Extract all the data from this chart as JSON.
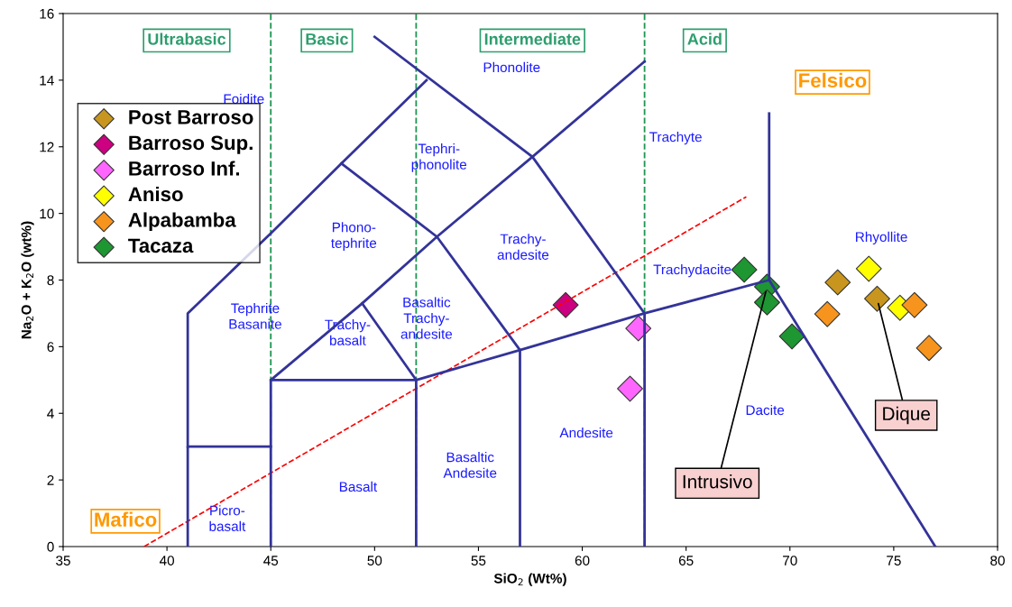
{
  "chart_data": {
    "type": "scatter",
    "xlabel": "SiO$_{2}$ (Wt%)",
    "ylabel": "Na$_{2}$O + K$_{2}$O (wt%)",
    "xlim": [
      35,
      80
    ],
    "ylim": [
      0,
      16
    ],
    "xticks": [
      35,
      40,
      45,
      50,
      55,
      60,
      65,
      70,
      75,
      80
    ],
    "yticks": [
      0,
      2,
      4,
      6,
      8,
      10,
      12,
      14,
      16
    ],
    "grid": false,
    "legend": "top left",
    "marker": "diamond",
    "series": [
      {
        "name": "Post Barroso",
        "color": "#c8961e",
        "x": [
          72.3,
          74.2
        ],
        "values": [
          7.93,
          7.44
        ]
      },
      {
        "name": "Barroso Sup.",
        "color": "#cc0080",
        "x": [
          59.2
        ],
        "values": [
          7.25
        ]
      },
      {
        "name": "Barroso Inf.",
        "color": "#ff66ff",
        "x": [
          62.7,
          62.3
        ],
        "values": [
          6.55,
          4.74
        ]
      },
      {
        "name": "Aniso",
        "color": "#ffff00",
        "x": [
          73.8,
          75.3
        ],
        "values": [
          8.34,
          7.17
        ]
      },
      {
        "name": "Alpabamba",
        "color": "#f7941d",
        "x": [
          71.8,
          76.0,
          76.7
        ],
        "values": [
          6.98,
          7.25,
          5.96
        ]
      },
      {
        "name": "Tacaza",
        "color": "#1e9632",
        "x": [
          67.8,
          68.9,
          68.9,
          70.1
        ],
        "values": [
          8.31,
          7.8,
          7.33,
          6.31
        ]
      },
      {
        "type": "line",
        "marker": "none",
        "line_style": "dashed",
        "color": "#ff0000",
        "x": [
          38.9,
          67.9
        ],
        "values": [
          0,
          10.5
        ]
      },
      {
        "type": "line",
        "marker": "none",
        "color": "#333399",
        "x": [
          41,
          41,
          45
        ],
        "values": [
          0,
          3,
          3
        ]
      },
      {
        "type": "line",
        "marker": "none",
        "color": "#333399",
        "x": [
          41,
          41,
          45,
          48.4,
          52.5
        ],
        "values": [
          3,
          7,
          9.4,
          11.5,
          14
        ]
      },
      {
        "type": "line",
        "marker": "none",
        "color": "#333399",
        "x": [
          45,
          45,
          49.4,
          53,
          57.6,
          63
        ],
        "values": [
          0,
          5,
          7.3,
          9.3,
          11.7,
          14.56
        ]
      },
      {
        "type": "line",
        "marker": "none",
        "color": "#333399",
        "x": [
          45,
          52,
          57,
          63,
          69,
          77
        ],
        "values": [
          5,
          5,
          5.9,
          7,
          8,
          0
        ]
      },
      {
        "type": "line",
        "marker": "none",
        "color": "#333399",
        "x": [
          52,
          52,
          49.4
        ],
        "values": [
          0,
          5,
          7.3
        ]
      },
      {
        "type": "line",
        "marker": "none",
        "color": "#333399",
        "x": [
          57,
          57,
          53,
          48.4
        ],
        "values": [
          0,
          5.9,
          9.3,
          11.5
        ]
      },
      {
        "type": "line",
        "marker": "none",
        "color": "#333399",
        "x": [
          63,
          63,
          57.6,
          50
        ],
        "values": [
          0,
          7,
          11.7,
          15.3
        ]
      },
      {
        "type": "line",
        "marker": "none",
        "color": "#333399",
        "x": [
          69,
          69
        ],
        "values": [
          8,
          13
        ]
      }
    ],
    "ref_lines": [
      {
        "axis": "x",
        "value": 45,
        "color": "#1e9650",
        "line_style": "dashed"
      },
      {
        "axis": "x",
        "value": 52,
        "color": "#1e9650",
        "line_style": "dashed"
      },
      {
        "axis": "x",
        "value": 63,
        "color": "#1e9650",
        "line_style": "dashed"
      }
    ],
    "annotations": [
      "Ultrabasic",
      "Basic",
      "Intermediate",
      "Acid",
      "Felsico",
      "Mafico",
      "Foidite",
      "Phonolite",
      "Tephri-\nphonolite",
      "Trachyte",
      "Phono-\ntephrite",
      "Trachy-\nandesite",
      "Rhyollite",
      "Trachydacite",
      "Tephrite\nBasanite",
      "Basaltic\nTrachy-\nandesite",
      "Trachy-\nbasalt",
      "Dacite",
      "Andesite",
      "Basaltic\nAndesite",
      "Basalt",
      "Picro-\nbasalt",
      {
        "text": "Intrusivo",
        "x": 68.9,
        "y": 7.8
      },
      {
        "text": "Dique",
        "x": 74.2,
        "y": 7.44
      }
    ]
  }
}
